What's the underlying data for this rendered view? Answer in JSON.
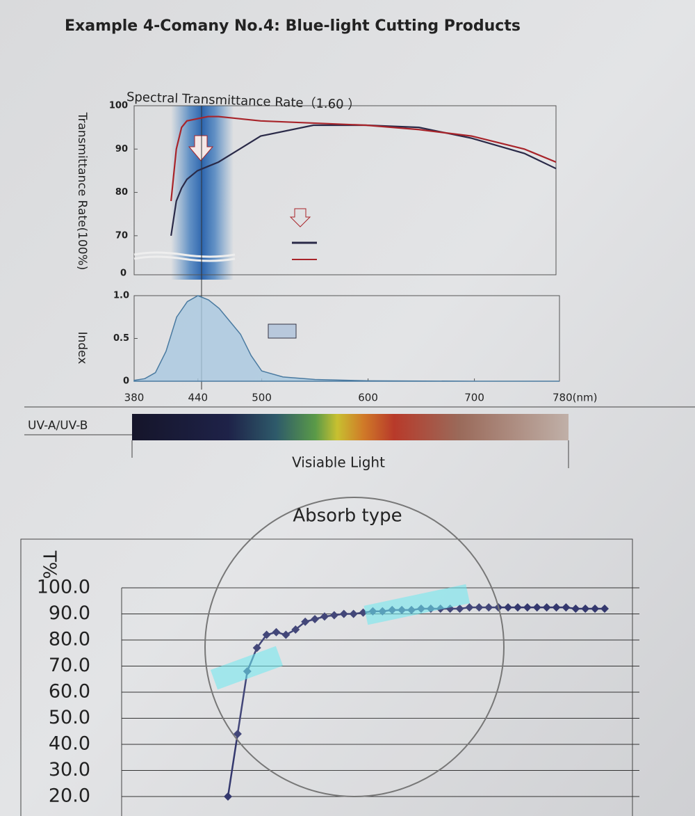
{
  "title": "Example 4-Comany No.4: Blue-light Cutting Products",
  "spectrum": {
    "left_label": "UV-A/UV-B",
    "label": "Visiable Light"
  },
  "chart_data": [
    {
      "type": "line",
      "title": "Spectral Transmittance Rate（1.60 ）",
      "ylabel": "Transmittance Rate(100%)",
      "break_label": "0",
      "x": [
        415,
        420,
        425,
        430,
        440,
        450,
        460,
        480,
        500,
        550,
        600,
        650,
        700,
        750,
        780
      ],
      "xlim": [
        380,
        780
      ],
      "ylim": [
        65,
        100
      ],
      "yticks": [
        70,
        80,
        90,
        100
      ],
      "series": [
        {
          "color": "#2a2a48",
          "values": [
            70,
            78,
            81,
            83,
            85,
            86,
            87,
            90,
            93,
            95.5,
            95.5,
            95,
            92.5,
            89,
            85.5
          ]
        },
        {
          "color": "#a8242a",
          "values": [
            78,
            90,
            95,
            96.5,
            97,
            97.5,
            97.5,
            97,
            96.5,
            96,
            95.5,
            94.5,
            93,
            90,
            87
          ]
        }
      ]
    },
    {
      "type": "area",
      "ylabel": "Index",
      "x": [
        380,
        390,
        400,
        410,
        420,
        430,
        440,
        450,
        460,
        470,
        480,
        490,
        500,
        520,
        550,
        600,
        700,
        780
      ],
      "values": [
        0.01,
        0.03,
        0.1,
        0.35,
        0.75,
        0.93,
        1.0,
        0.95,
        0.85,
        0.7,
        0.55,
        0.3,
        0.12,
        0.05,
        0.02,
        0.005,
        0,
        0
      ],
      "color": "#4a7aa0",
      "xlim": [
        380,
        780
      ],
      "ylim": [
        0,
        1
      ],
      "yticks": [
        0,
        0.5,
        {
          "value": 1,
          "label": "1.0"
        }
      ],
      "xticks": [
        380,
        440,
        500,
        600,
        700,
        {
          "value": 780,
          "label": "780(nm)"
        }
      ]
    },
    {
      "type": "line",
      "title": "Absorb type",
      "ylabel": "T%",
      "color": "#34386e",
      "grid": true,
      "categories": [
        null,
        null,
        null,
        null,
        null,
        null,
        null,
        null,
        null,
        null,
        null,
        null,
        null,
        null,
        null,
        null,
        null,
        null,
        null,
        null,
        null,
        null,
        null,
        null,
        null,
        null,
        null,
        null,
        null,
        null,
        null,
        null,
        null,
        null,
        null,
        null,
        null,
        null,
        null,
        null
      ],
      "values": [
        20,
        44,
        68,
        77,
        82,
        83,
        82,
        84,
        87,
        88,
        89,
        89.5,
        90,
        90,
        90.5,
        91,
        91,
        91.5,
        91.5,
        91.5,
        92,
        92,
        92,
        92,
        92,
        92.5,
        92.5,
        92.5,
        92.5,
        92.5,
        92.5,
        92.5,
        92.5,
        92.5,
        92.5,
        92.5,
        92,
        92,
        92,
        92
      ],
      "ylim": [
        20,
        100
      ],
      "yticks": [
        {
          "value": 20,
          "label": "20.0"
        },
        {
          "value": 30,
          "label": "30.0"
        },
        {
          "value": 40,
          "label": "40.0"
        },
        {
          "value": 50,
          "label": "50.0"
        },
        {
          "value": 60,
          "label": "60.0"
        },
        {
          "value": 70,
          "label": "70.0"
        },
        {
          "value": 80,
          "label": "80.0"
        },
        {
          "value": 90,
          "label": "90.0"
        },
        {
          "value": 100,
          "label": "100.0"
        }
      ]
    }
  ]
}
